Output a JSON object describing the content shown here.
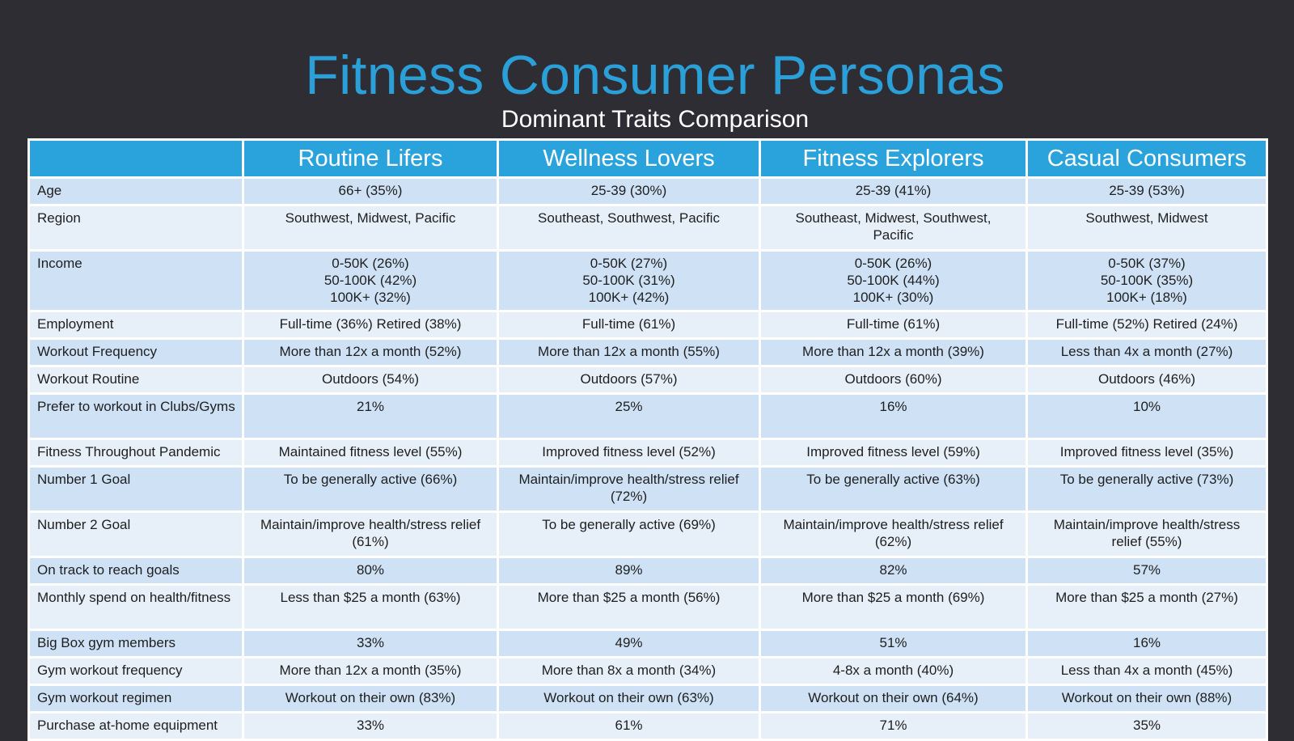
{
  "title": "Fitness Consumer Personas",
  "subtitle": "Dominant Traits Comparison",
  "colors": {
    "background": "#2e2d34",
    "title": "#2a9fd8",
    "header_fill": "#2aa3dc",
    "row_dark": "#cfe2f5",
    "row_light": "#e7f0f9"
  },
  "table": {
    "corner": "",
    "headers": [
      "Routine Lifers",
      "Wellness Lovers",
      "Fitness Explorers",
      "Casual Consumers"
    ],
    "rows": [
      {
        "label": "Age",
        "values": [
          "66+ (35%)",
          "25-39 (30%)",
          "25-39 (41%)",
          "25-39 (53%)"
        ]
      },
      {
        "label": "Region",
        "values": [
          "Southwest, Midwest, Pacific",
          "Southeast, Southwest, Pacific",
          "Southeast, Midwest, Southwest,\nPacific",
          "Southwest, Midwest"
        ]
      },
      {
        "label": "Income",
        "values": [
          "0-50K (26%)\n50-100K (42%)\n100K+ (32%)",
          "0-50K (27%)\n50-100K (31%)\n100K+ (42%)",
          "0-50K (26%)\n50-100K (44%)\n100K+ (30%)",
          "0-50K (37%)\n50-100K (35%)\n100K+ (18%)"
        ]
      },
      {
        "label": "Employment",
        "values": [
          "Full-time (36%) Retired (38%)",
          "Full-time (61%)",
          "Full-time (61%)",
          "Full-time (52%) Retired (24%)"
        ]
      },
      {
        "label": "Workout Frequency",
        "values": [
          "More than 12x a month (52%)",
          "More than 12x a month (55%)",
          "More than 12x a month (39%)",
          "Less than 4x a month (27%)"
        ]
      },
      {
        "label": "Workout Routine",
        "values": [
          "Outdoors (54%)",
          "Outdoors (57%)",
          "Outdoors (60%)",
          "Outdoors (46%)"
        ]
      },
      {
        "label": "Prefer to workout in Clubs/Gyms",
        "values": [
          "21%",
          "25%",
          "16%",
          "10%"
        ]
      },
      {
        "label": "Fitness Throughout Pandemic",
        "values": [
          "Maintained fitness level (55%)",
          "Improved fitness level (52%)",
          "Improved fitness level (59%)",
          "Improved fitness level (35%)"
        ]
      },
      {
        "label": "Number 1 Goal",
        "values": [
          "To be generally active (66%)",
          "Maintain/improve health/stress relief\n(72%)",
          "To be generally active (63%)",
          "To be generally active (73%)"
        ]
      },
      {
        "label": "Number 2 Goal",
        "values": [
          "Maintain/improve health/stress relief\n(61%)",
          "To be generally active (69%)",
          "Maintain/improve health/stress relief\n(62%)",
          "Maintain/improve health/stress\nrelief (55%)"
        ]
      },
      {
        "label": "On track to reach goals",
        "values": [
          "80%",
          "89%",
          "82%",
          "57%"
        ]
      },
      {
        "label": "Monthly spend on health/fitness",
        "values": [
          "Less than $25 a month (63%)",
          "More than $25 a month (56%)",
          "More than $25 a month (69%)",
          "More than $25 a month (27%)"
        ]
      },
      {
        "label": "Big Box gym members",
        "values": [
          "33%",
          "49%",
          "51%",
          "16%"
        ]
      },
      {
        "label": "Gym workout frequency",
        "values": [
          "More than 12x a month (35%)",
          "More than 8x a month (34%)",
          "4-8x a month (40%)",
          "Less than 4x a month (45%)"
        ]
      },
      {
        "label": "Gym workout regimen",
        "values": [
          "Workout on their own (83%)",
          "Workout on their own (63%)",
          "Workout on their own (64%)",
          "Workout on their own (88%)"
        ]
      },
      {
        "label": "Purchase at-home equipment",
        "values": [
          "33%",
          "61%",
          "71%",
          "35%"
        ]
      }
    ]
  }
}
